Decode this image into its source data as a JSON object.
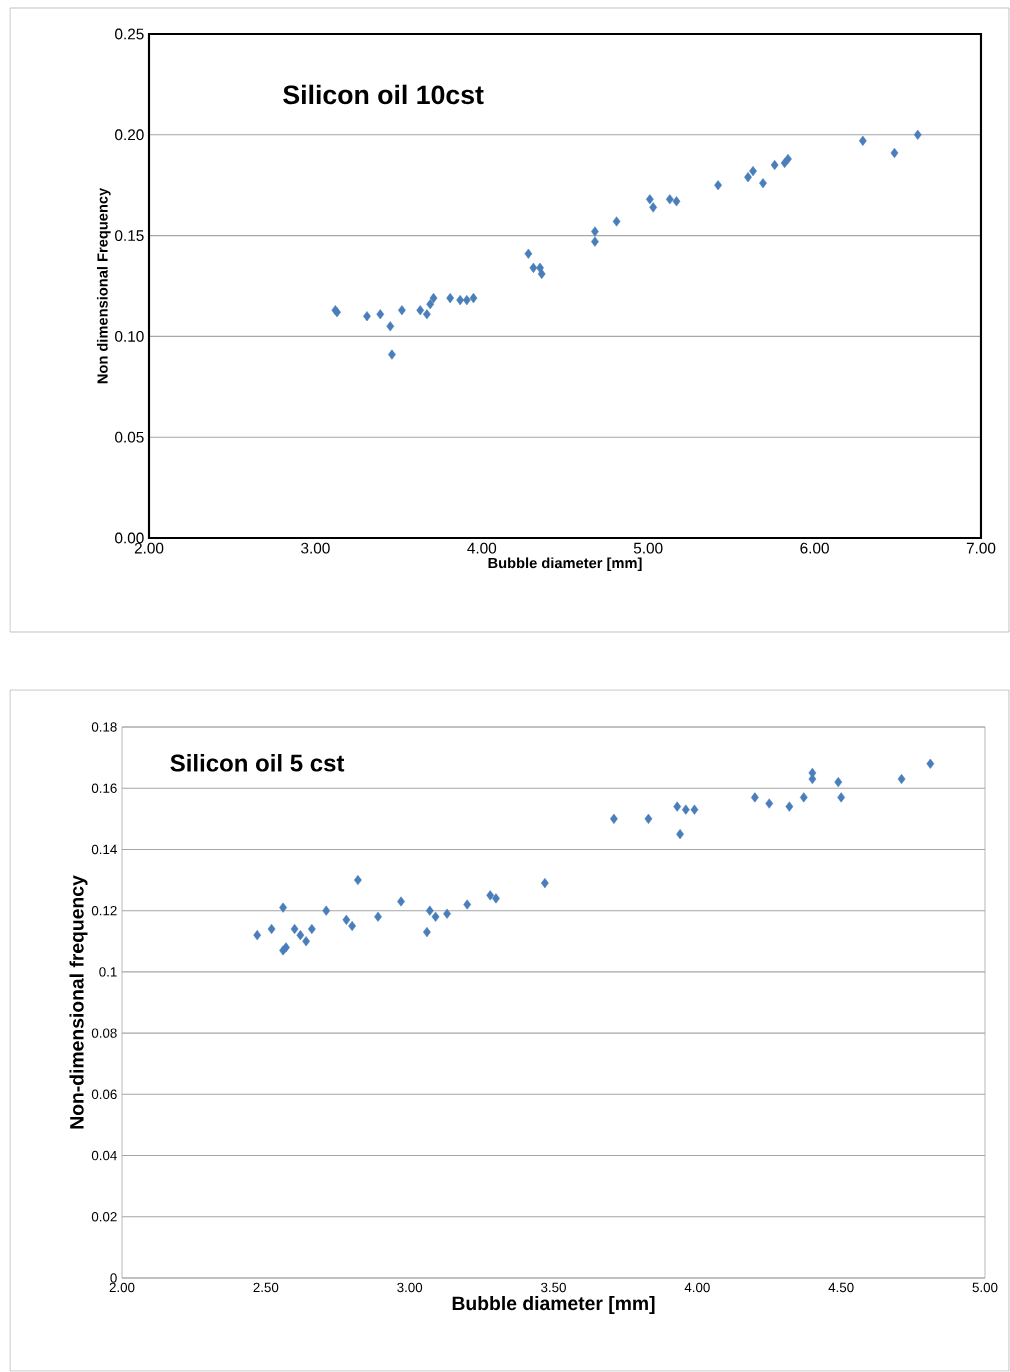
{
  "chart_data": [
    {
      "type": "scatter",
      "title": "Silicon oil 10cst",
      "xlabel": "Bubble diameter [mm]",
      "ylabel": "Non dimensional Frequency",
      "marker": "diamond",
      "grid": "y",
      "xlim": [
        2,
        7
      ],
      "ylim": [
        0,
        0.25
      ],
      "xticks": [
        {
          "value": 2,
          "label": "2.00"
        },
        {
          "value": 3,
          "label": "3.00"
        },
        {
          "value": 4,
          "label": "4.00"
        },
        {
          "value": 5,
          "label": "5.00"
        },
        {
          "value": 6,
          "label": "6.00"
        },
        {
          "value": 7,
          "label": "7.00"
        }
      ],
      "yticks": [
        {
          "value": 0,
          "label": "0.00"
        },
        0.05,
        {
          "value": 0.1,
          "label": "0.10"
        },
        0.15,
        {
          "value": 0.2,
          "label": "0.20"
        },
        0.25
      ],
      "series": [
        {
          "color": "#4a7ebb",
          "x": [
            3.12,
            3.13,
            3.31,
            3.39,
            3.45,
            3.46,
            3.52,
            3.63,
            3.67,
            3.69,
            3.71,
            3.81,
            3.87,
            3.91,
            3.95,
            4.28,
            4.31,
            4.35,
            4.36,
            4.68,
            4.68,
            4.81,
            5.01,
            5.03,
            5.13,
            5.17,
            5.42,
            5.6,
            5.63,
            5.69,
            5.76,
            5.82,
            5.84,
            6.29,
            6.48,
            6.62
          ],
          "values": [
            0.113,
            0.112,
            0.11,
            0.111,
            0.105,
            0.091,
            0.113,
            0.113,
            0.111,
            0.116,
            0.119,
            0.119,
            0.118,
            0.118,
            0.119,
            0.141,
            0.134,
            0.134,
            0.131,
            0.152,
            0.147,
            0.157,
            0.168,
            0.164,
            0.168,
            0.167,
            0.175,
            0.179,
            0.182,
            0.176,
            0.185,
            0.186,
            0.188,
            0.197,
            0.191,
            0.2
          ]
        }
      ]
    },
    {
      "type": "scatter",
      "title": "Silicon oil 5 cst",
      "xlabel": "Bubble diameter [mm]",
      "ylabel": "Non-dimensional frequency",
      "marker": "diamond",
      "grid": "y",
      "xlim": [
        2,
        5
      ],
      "ylim": [
        0,
        0.18
      ],
      "xticks": [
        {
          "value": 2,
          "label": "2.00"
        },
        {
          "value": 2.5,
          "label": "2.50"
        },
        {
          "value": 3,
          "label": "3.00"
        },
        {
          "value": 3.5,
          "label": "3.50"
        },
        {
          "value": 4,
          "label": "4.00"
        },
        {
          "value": 4.5,
          "label": "4.50"
        },
        {
          "value": 5,
          "label": "5.00"
        }
      ],
      "yticks": [
        0,
        0.02,
        0.04,
        0.06,
        0.08,
        0.1,
        0.12,
        0.14,
        0.16,
        0.18
      ],
      "series": [
        {
          "color": "#4a7ebb",
          "x": [
            2.47,
            2.52,
            2.56,
            2.56,
            2.57,
            2.6,
            2.62,
            2.64,
            2.66,
            2.71,
            2.78,
            2.8,
            2.82,
            2.89,
            2.97,
            3.06,
            3.07,
            3.09,
            3.13,
            3.2,
            3.28,
            3.3,
            3.47,
            3.71,
            3.83,
            3.93,
            3.94,
            3.96,
            3.99,
            4.2,
            4.25,
            4.32,
            4.37,
            4.4,
            4.4,
            4.49,
            4.5,
            4.71,
            4.81
          ],
          "values": [
            0.112,
            0.114,
            0.121,
            0.107,
            0.108,
            0.114,
            0.112,
            0.11,
            0.114,
            0.12,
            0.117,
            0.115,
            0.13,
            0.118,
            0.123,
            0.113,
            0.12,
            0.118,
            0.119,
            0.122,
            0.125,
            0.124,
            0.129,
            0.15,
            0.15,
            0.154,
            0.145,
            0.153,
            0.153,
            0.157,
            0.155,
            0.154,
            0.157,
            0.163,
            0.165,
            0.162,
            0.157,
            0.163,
            0.168
          ]
        }
      ]
    }
  ]
}
